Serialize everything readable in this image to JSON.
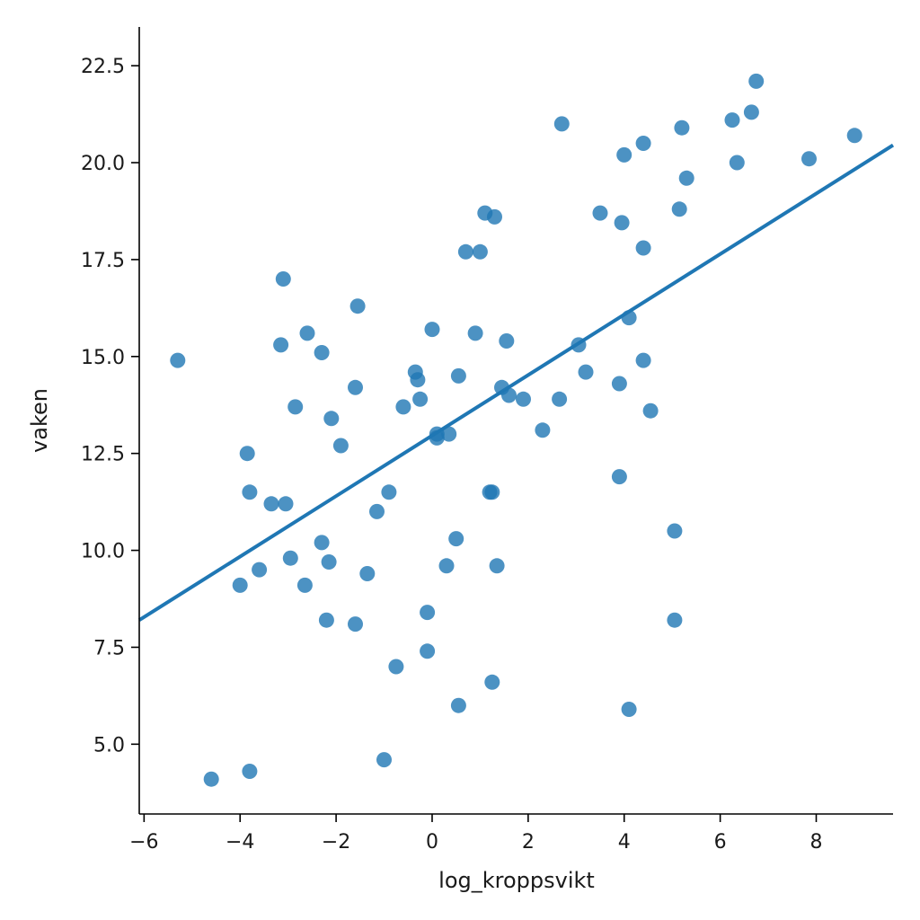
{
  "chart_data": {
    "type": "scatter",
    "xlabel": "log_kroppsvikt",
    "ylabel": "vaken",
    "xlim": [
      -6.1,
      9.6
    ],
    "ylim": [
      3.2,
      23.5
    ],
    "x_ticks": [
      -6,
      -4,
      -2,
      0,
      2,
      4,
      6,
      8
    ],
    "x_tick_labels": [
      "−6",
      "−4",
      "−2",
      "0",
      "2",
      "4",
      "6",
      "8"
    ],
    "y_ticks": [
      5.0,
      7.5,
      10.0,
      12.5,
      15.0,
      17.5,
      20.0,
      22.5
    ],
    "y_tick_labels": [
      "5.0",
      "7.5",
      "10.0",
      "12.5",
      "15.0",
      "17.5",
      "20.0",
      "22.5"
    ],
    "grid": false,
    "color": "#1f77b4",
    "regression_line": {
      "x": [
        -6.1,
        9.6
      ],
      "y": [
        8.2,
        20.45
      ]
    },
    "points": [
      {
        "x": -5.3,
        "y": 14.9
      },
      {
        "x": -4.6,
        "y": 4.1
      },
      {
        "x": -3.8,
        "y": 4.3
      },
      {
        "x": -3.85,
        "y": 12.5
      },
      {
        "x": -3.8,
        "y": 11.5
      },
      {
        "x": -4.0,
        "y": 9.1
      },
      {
        "x": -3.6,
        "y": 9.5
      },
      {
        "x": -3.35,
        "y": 11.2
      },
      {
        "x": -3.05,
        "y": 11.2
      },
      {
        "x": -3.1,
        "y": 17.0
      },
      {
        "x": -3.15,
        "y": 15.3
      },
      {
        "x": -2.95,
        "y": 9.8
      },
      {
        "x": -2.85,
        "y": 13.7
      },
      {
        "x": -2.65,
        "y": 9.1
      },
      {
        "x": -2.6,
        "y": 15.6
      },
      {
        "x": -2.3,
        "y": 15.1
      },
      {
        "x": -2.3,
        "y": 10.2
      },
      {
        "x": -2.2,
        "y": 8.2
      },
      {
        "x": -2.1,
        "y": 13.4
      },
      {
        "x": -2.15,
        "y": 9.7
      },
      {
        "x": -1.9,
        "y": 12.7
      },
      {
        "x": -1.6,
        "y": 14.2
      },
      {
        "x": -1.55,
        "y": 16.3
      },
      {
        "x": -1.6,
        "y": 8.1
      },
      {
        "x": -1.35,
        "y": 9.4
      },
      {
        "x": -1.15,
        "y": 11.0
      },
      {
        "x": -0.9,
        "y": 11.5
      },
      {
        "x": -1.0,
        "y": 4.6
      },
      {
        "x": -0.75,
        "y": 7.0
      },
      {
        "x": -0.6,
        "y": 13.7
      },
      {
        "x": -0.35,
        "y": 14.6
      },
      {
        "x": -0.3,
        "y": 14.4
      },
      {
        "x": -0.25,
        "y": 13.9
      },
      {
        "x": -0.1,
        "y": 8.4
      },
      {
        "x": -0.1,
        "y": 7.4
      },
      {
        "x": 0.0,
        "y": 15.7
      },
      {
        "x": 0.1,
        "y": 13.0
      },
      {
        "x": 0.1,
        "y": 12.9
      },
      {
        "x": 0.35,
        "y": 13.0
      },
      {
        "x": 0.3,
        "y": 9.6
      },
      {
        "x": 0.5,
        "y": 10.3
      },
      {
        "x": 0.55,
        "y": 14.5
      },
      {
        "x": 0.55,
        "y": 6.0
      },
      {
        "x": 0.7,
        "y": 17.7
      },
      {
        "x": 0.9,
        "y": 15.6
      },
      {
        "x": 1.0,
        "y": 17.7
      },
      {
        "x": 1.1,
        "y": 18.7
      },
      {
        "x": 1.3,
        "y": 18.6
      },
      {
        "x": 1.2,
        "y": 11.5
      },
      {
        "x": 1.25,
        "y": 11.5
      },
      {
        "x": 1.35,
        "y": 9.6
      },
      {
        "x": 1.25,
        "y": 6.6
      },
      {
        "x": 1.45,
        "y": 14.2
      },
      {
        "x": 1.55,
        "y": 15.4
      },
      {
        "x": 1.6,
        "y": 14.0
      },
      {
        "x": 1.9,
        "y": 13.9
      },
      {
        "x": 2.3,
        "y": 13.1
      },
      {
        "x": 2.65,
        "y": 13.9
      },
      {
        "x": 2.7,
        "y": 21.0
      },
      {
        "x": 3.05,
        "y": 15.3
      },
      {
        "x": 3.2,
        "y": 14.6
      },
      {
        "x": 3.5,
        "y": 18.7
      },
      {
        "x": 3.9,
        "y": 14.3
      },
      {
        "x": 3.9,
        "y": 11.9
      },
      {
        "x": 3.95,
        "y": 18.45
      },
      {
        "x": 4.0,
        "y": 20.2
      },
      {
        "x": 4.1,
        "y": 16.0
      },
      {
        "x": 4.1,
        "y": 5.9
      },
      {
        "x": 4.4,
        "y": 20.5
      },
      {
        "x": 4.4,
        "y": 17.8
      },
      {
        "x": 4.4,
        "y": 14.9
      },
      {
        "x": 4.55,
        "y": 13.6
      },
      {
        "x": 5.05,
        "y": 10.5
      },
      {
        "x": 5.05,
        "y": 8.2
      },
      {
        "x": 5.15,
        "y": 18.8
      },
      {
        "x": 5.2,
        "y": 20.9
      },
      {
        "x": 5.3,
        "y": 19.6
      },
      {
        "x": 6.25,
        "y": 21.1
      },
      {
        "x": 6.35,
        "y": 20.0
      },
      {
        "x": 6.65,
        "y": 21.3
      },
      {
        "x": 6.75,
        "y": 22.1
      },
      {
        "x": 7.85,
        "y": 20.1
      },
      {
        "x": 8.8,
        "y": 20.7
      }
    ]
  }
}
